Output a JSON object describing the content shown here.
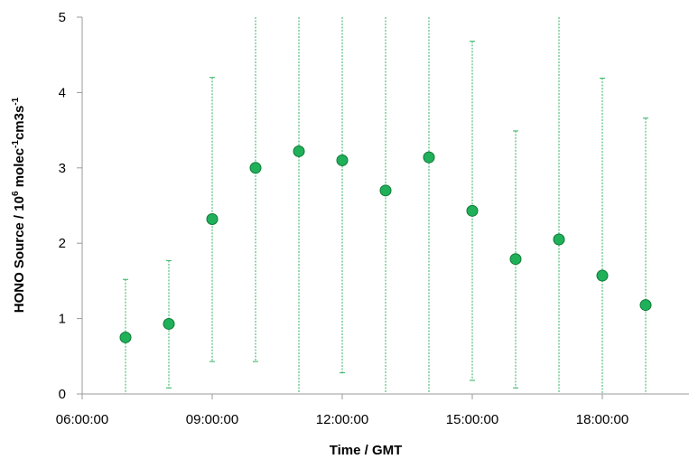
{
  "chart_data": {
    "type": "scatter",
    "xlabel": "Time / GMT",
    "ylabel": {
      "part1": "HONO Source / 10",
      "sup1": "6",
      "part2": " molec",
      "sup2": "-1",
      "part3": "cm3s",
      "sup3": "-1"
    },
    "xlim_hours": [
      6,
      20
    ],
    "ylim": [
      0,
      5
    ],
    "x_ticks": [
      {
        "hour": 6,
        "label": "06:00:00"
      },
      {
        "hour": 9,
        "label": "09:00:00"
      },
      {
        "hour": 12,
        "label": "12:00:00"
      },
      {
        "hour": 15,
        "label": "15:00:00"
      },
      {
        "hour": 18,
        "label": "18:00:00"
      }
    ],
    "y_ticks": [
      0,
      1,
      2,
      3,
      4,
      5
    ],
    "grid": false,
    "legend": "none",
    "series": [
      {
        "points": [
          {
            "x": "07:00:00",
            "y": 0.75,
            "err_low": 0.0,
            "err_high": 1.52
          },
          {
            "x": "08:00:00",
            "y": 0.93,
            "err_low": 0.08,
            "err_high": 1.77
          },
          {
            "x": "09:00:00",
            "y": 2.32,
            "err_low": 0.43,
            "err_high": 4.2
          },
          {
            "x": "10:00:00",
            "y": 3.0,
            "err_low": 0.43,
            "err_high": 5.0
          },
          {
            "x": "11:00:00",
            "y": 3.22,
            "err_low": 0.0,
            "err_high": 5.0
          },
          {
            "x": "12:00:00",
            "y": 3.1,
            "err_low": 0.28,
            "err_high": 5.0
          },
          {
            "x": "13:00:00",
            "y": 2.7,
            "err_low": 0.0,
            "err_high": 5.0
          },
          {
            "x": "14:00:00",
            "y": 3.14,
            "err_low": 0.0,
            "err_high": 5.0
          },
          {
            "x": "15:00:00",
            "y": 2.43,
            "err_low": 0.18,
            "err_high": 4.68
          },
          {
            "x": "16:00:00",
            "y": 1.79,
            "err_low": 0.08,
            "err_high": 3.49
          },
          {
            "x": "17:00:00",
            "y": 2.05,
            "err_low": 0.0,
            "err_high": 5.0
          },
          {
            "x": "18:00:00",
            "y": 1.57,
            "err_low": 0.0,
            "err_high": 4.19
          },
          {
            "x": "19:00:00",
            "y": 1.18,
            "err_low": 0.0,
            "err_high": 3.66
          }
        ]
      }
    ],
    "colors": {
      "marker_fill": "#20b05a",
      "marker_stroke": "#0e7a36",
      "error_bar": "#2fb25f",
      "axis": "#9a9a9a"
    }
  }
}
